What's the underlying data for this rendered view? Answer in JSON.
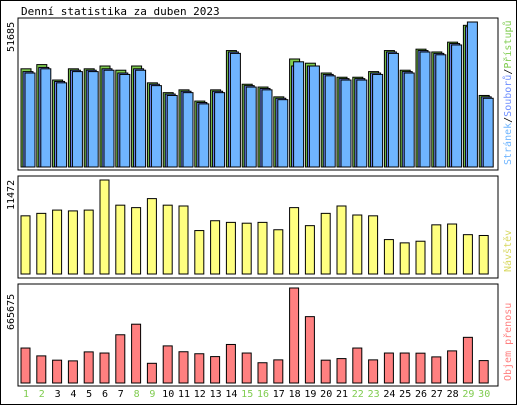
{
  "title": "Denní statistika za duben 2023",
  "chart_data": [
    {
      "type": "bar",
      "panel": "top",
      "ytick_label": "51685",
      "legend_parts": [
        {
          "text": "Stránek",
          "color": "#6fb5ff"
        },
        {
          "text": "/",
          "color": "#000000"
        },
        {
          "text": "Souborů",
          "color": "#6f8fff"
        },
        {
          "text": "/",
          "color": "#000000"
        },
        {
          "text": "Přístupů",
          "color": "#7fcc4f"
        }
      ],
      "categories": [
        "1",
        "2",
        "3",
        "4",
        "5",
        "6",
        "7",
        "8",
        "9",
        "10",
        "11",
        "12",
        "13",
        "14",
        "15",
        "16",
        "17",
        "18",
        "19",
        "20",
        "21",
        "22",
        "23",
        "24",
        "25",
        "26",
        "27",
        "28",
        "29",
        "30"
      ],
      "series": [
        {
          "name": "Přístupů",
          "color": "#7fcc4f",
          "values": [
            35000,
            36500,
            31000,
            35000,
            35000,
            36000,
            34500,
            36000,
            30000,
            26500,
            27500,
            23500,
            27500,
            41500,
            29500,
            28500,
            25000,
            38500,
            37000,
            33500,
            32000,
            32000,
            34000,
            41500,
            34500,
            42000,
            41000,
            44500,
            50500,
            25500
          ]
        },
        {
          "name": "Souborů",
          "color": "#6f8fff",
          "values": [
            34000,
            35500,
            30500,
            34500,
            34500,
            35000,
            33500,
            35000,
            29500,
            26000,
            27000,
            23000,
            27000,
            41000,
            29000,
            28000,
            24500,
            36000,
            36000,
            33000,
            31500,
            31500,
            33500,
            41000,
            34000,
            41500,
            40500,
            44000,
            50000,
            25000
          ]
        },
        {
          "name": "Stránek",
          "color": "#6fb5ff",
          "values": [
            33500,
            35000,
            30000,
            34000,
            34000,
            34500,
            33000,
            34500,
            29000,
            25500,
            26500,
            22500,
            26500,
            40500,
            28500,
            27500,
            24000,
            37500,
            36000,
            32500,
            31000,
            31000,
            33000,
            40500,
            33500,
            41000,
            40000,
            43500,
            51685,
            24500
          ]
        }
      ]
    },
    {
      "type": "bar",
      "panel": "middle",
      "ytick_label": "11472",
      "legend_parts": [
        {
          "text": "Návštěv",
          "color": "#d8d860"
        }
      ],
      "series": [
        {
          "name": "Návštěv",
          "color": "#ffff80",
          "values": [
            7100,
            7400,
            7800,
            7700,
            7800,
            11472,
            8400,
            8100,
            9200,
            8400,
            8300,
            5300,
            6500,
            6300,
            6200,
            6300,
            5400,
            8100,
            5900,
            7400,
            8300,
            7200,
            7100,
            4200,
            3800,
            4000,
            6000,
            6100,
            4800,
            4700
          ]
        }
      ]
    },
    {
      "type": "bar",
      "panel": "bottom",
      "ytick_label": "665675",
      "legend_parts": [
        {
          "text": "Objem přenosu",
          "color": "#ff8080"
        }
      ],
      "series": [
        {
          "name": "Objem přenosu",
          "color": "#ff8080",
          "values": [
            245000,
            190000,
            160000,
            155000,
            218000,
            210000,
            338000,
            412000,
            138000,
            260000,
            219000,
            205000,
            185000,
            270000,
            210000,
            142000,
            162000,
            665675,
            465000,
            160000,
            171000,
            245000,
            162000,
            210000,
            210000,
            209000,
            183000,
            225000,
            320000,
            157000
          ]
        }
      ]
    }
  ],
  "weekend_days": [
    "1",
    "2",
    "8",
    "9",
    "15",
    "16",
    "22",
    "23",
    "29",
    "30"
  ],
  "colors": {
    "weekday_label": "#000000",
    "weekend_label": "#7fcc4f",
    "frame": "#000000",
    "panel_edge": "#808080"
  }
}
